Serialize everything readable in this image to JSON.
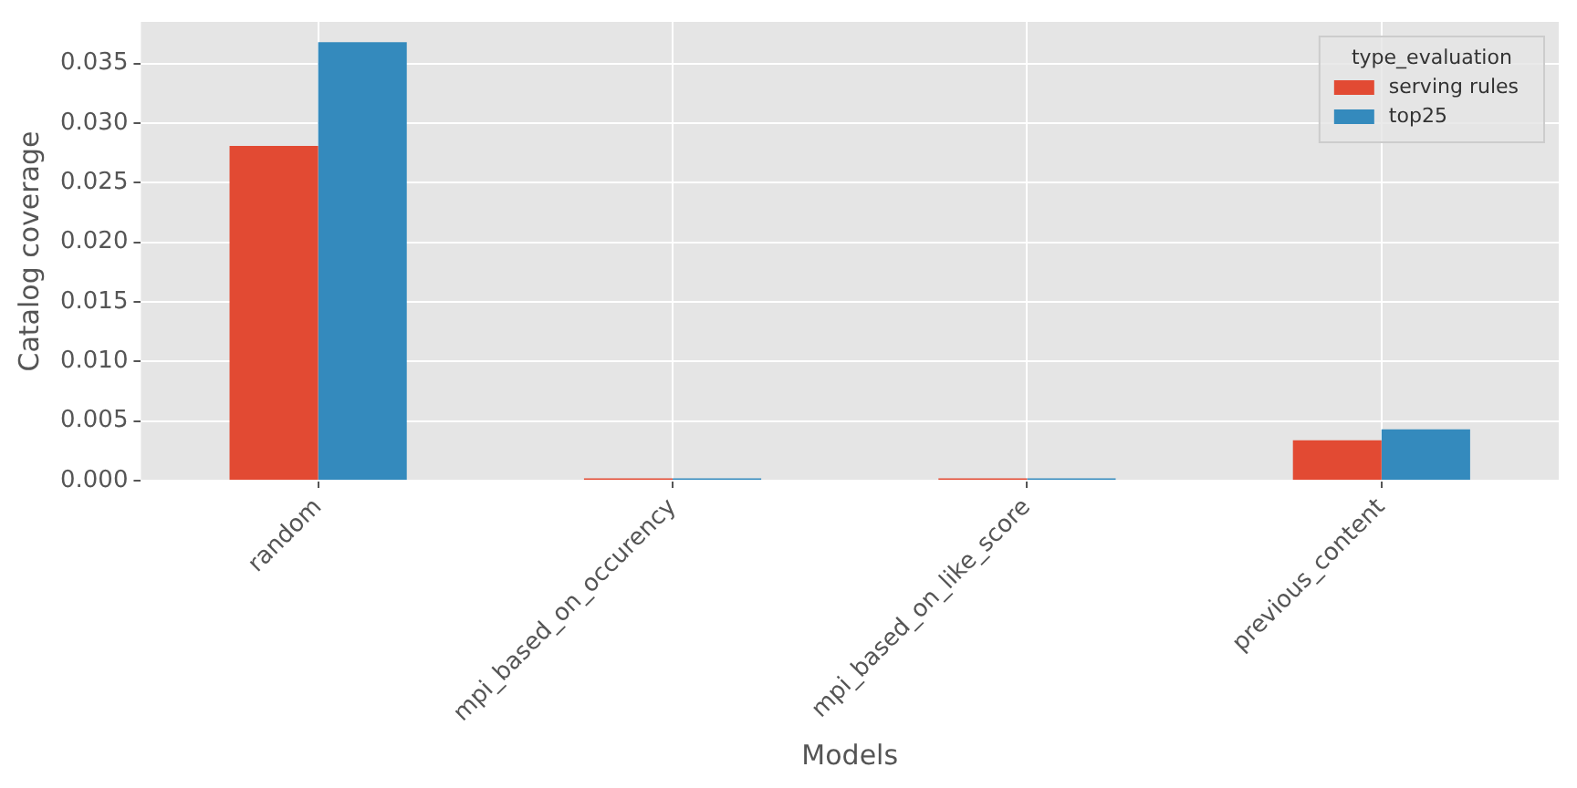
{
  "chart_data": {
    "type": "bar",
    "xlabel": "Models",
    "ylabel": "Catalog coverage",
    "legend_title": "type_evaluation",
    "categories": [
      "random",
      "mpi_based_on_occurency",
      "mpi_based_on_like_score",
      "previous_content"
    ],
    "series": [
      {
        "name": "serving rules",
        "color": "#e24a33",
        "values": [
          0.0281,
          0.0002,
          0.0002,
          0.0034
        ]
      },
      {
        "name": "top25",
        "color": "#348abd",
        "values": [
          0.0368,
          0.0002,
          0.0002,
          0.0043
        ]
      }
    ],
    "ylim": [
      0,
      0.0385
    ],
    "yticks": [
      {
        "value": 0,
        "label": "0.000"
      },
      {
        "value": 0.005,
        "label": "0.005"
      },
      {
        "value": 0.01,
        "label": "0.010"
      },
      {
        "value": 0.015,
        "label": "0.015"
      },
      {
        "value": 0.02,
        "label": "0.020"
      },
      {
        "value": 0.025,
        "label": "0.025"
      },
      {
        "value": 0.03,
        "label": "0.030"
      },
      {
        "value": 0.035,
        "label": "0.035"
      }
    ],
    "grid": true,
    "legend": "top right"
  }
}
